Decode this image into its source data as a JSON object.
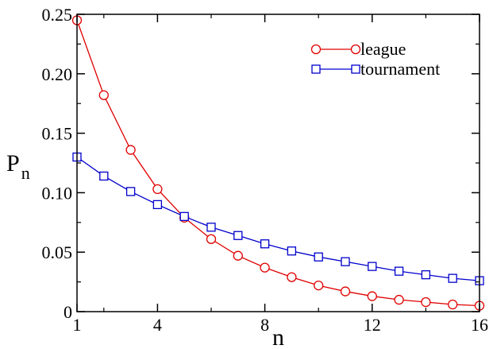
{
  "chart_data": {
    "type": "line",
    "title": "",
    "xlabel": "n",
    "ylabel": {
      "main": "P",
      "sub": "n"
    },
    "xlim": [
      1,
      16
    ],
    "ylim": [
      0,
      0.25
    ],
    "x_ticks": [
      {
        "value": 1,
        "label": "1"
      },
      {
        "value": 4,
        "label": "4"
      },
      {
        "value": 8,
        "label": "8"
      },
      {
        "value": 12,
        "label": "12"
      },
      {
        "value": 16,
        "label": "16"
      }
    ],
    "y_ticks": [
      {
        "value": 0,
        "label": "0"
      },
      {
        "value": 0.05,
        "label": "0.05"
      },
      {
        "value": 0.1,
        "label": "0.10"
      },
      {
        "value": 0.15,
        "label": "0.15"
      },
      {
        "value": 0.2,
        "label": "0.20"
      },
      {
        "value": 0.25,
        "label": "0.25"
      }
    ],
    "grid": false,
    "legend_position": "top-right",
    "x": [
      1,
      2,
      3,
      4,
      5,
      6,
      7,
      8,
      9,
      10,
      11,
      12,
      13,
      14,
      15,
      16
    ],
    "series": [
      {
        "name": "league",
        "color": "#e00000",
        "marker": "circle",
        "values": [
          0.245,
          0.182,
          0.136,
          0.103,
          0.079,
          0.061,
          0.047,
          0.037,
          0.029,
          0.022,
          0.017,
          0.013,
          0.01,
          0.008,
          0.006,
          0.005
        ]
      },
      {
        "name": "tournament",
        "color": "#0000cc",
        "marker": "square",
        "values": [
          0.13,
          0.114,
          0.101,
          0.09,
          0.08,
          0.071,
          0.064,
          0.057,
          0.051,
          0.046,
          0.042,
          0.038,
          0.034,
          0.031,
          0.028,
          0.026
        ]
      }
    ]
  }
}
